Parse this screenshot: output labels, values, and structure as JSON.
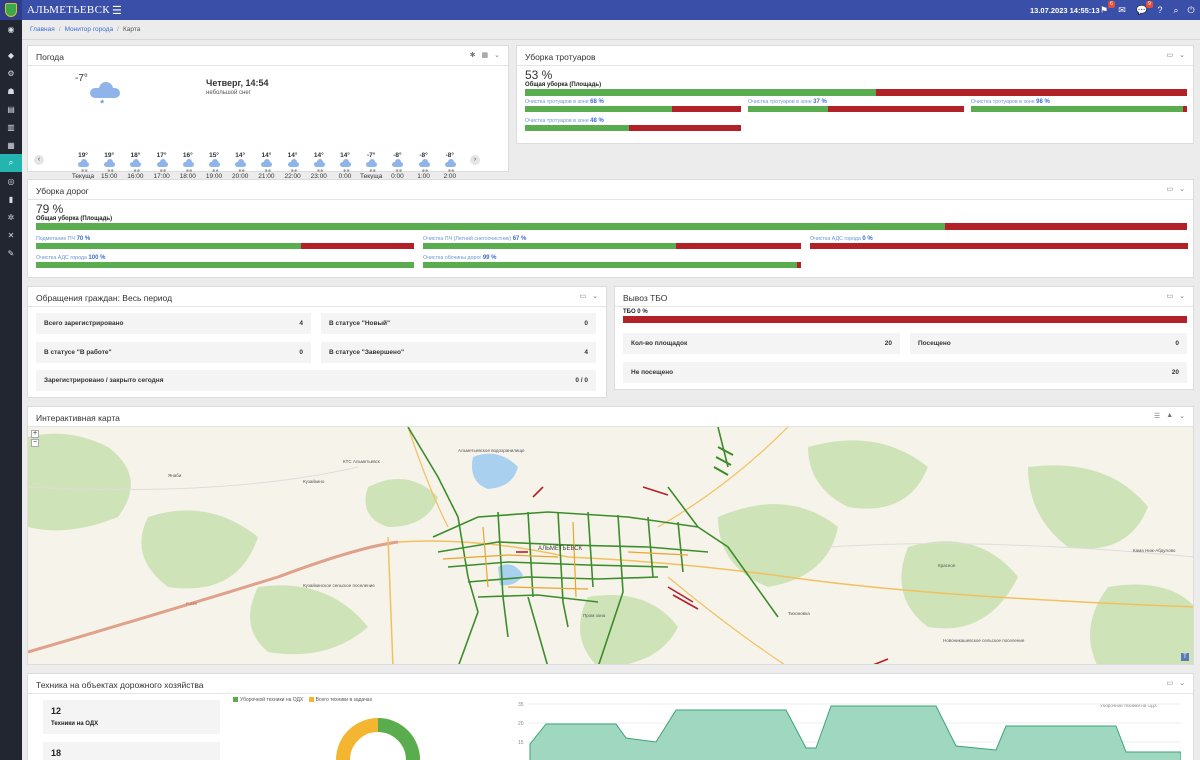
{
  "header": {
    "app_title": "АЛЬМЕТЬЕВСК",
    "datetime": "13.07.2023 14:55:13",
    "badges": {
      "notifications": "6",
      "chat": "9"
    },
    "icons": [
      "menu-icon",
      "flag-icon",
      "mail-icon",
      "chat-icon",
      "help-icon",
      "search-icon",
      "power-icon"
    ]
  },
  "breadcrumbs": [
    "Главная",
    "Монитор города",
    "Карта"
  ],
  "weather": {
    "title": "Погода",
    "current_temp": "-7°",
    "day": "Четверг, 14:54",
    "condition": "небольшой снег",
    "hours": [
      {
        "t": "19°",
        "h": "Текуща я"
      },
      {
        "t": "19°",
        "h": "15:00"
      },
      {
        "t": "18°",
        "h": "16:00"
      },
      {
        "t": "17°",
        "h": "17:00"
      },
      {
        "t": "16°",
        "h": "18:00"
      },
      {
        "t": "15°",
        "h": "19:00"
      },
      {
        "t": "14°",
        "h": "20:00"
      },
      {
        "t": "14°",
        "h": "21:00"
      },
      {
        "t": "14°",
        "h": "22:00"
      },
      {
        "t": "14°",
        "h": "23:00"
      },
      {
        "t": "14°",
        "h": "0:00"
      },
      {
        "t": "-7°",
        "h": "Текуща я"
      },
      {
        "t": "-8°",
        "h": "0:00"
      },
      {
        "t": "-8°",
        "h": "1:00"
      },
      {
        "t": "-8°",
        "h": "2:00"
      }
    ]
  },
  "sidewalks": {
    "title": "Уборка тротуаров",
    "total_pct": "53 %",
    "total_fraction": 0.53,
    "total_label": "Общая уборка (Площадь)",
    "items": [
      {
        "label": "Очистка тротуаров в зоне",
        "pct": "68 %",
        "fraction": 0.68
      },
      {
        "label": "Очистка тротуаров в зоне",
        "pct": "37 %",
        "fraction": 0.37
      },
      {
        "label": "Очистка тротуаров в зоне",
        "pct": "98 %",
        "fraction": 0.98
      },
      {
        "label": "Очистка тротуаров в зоне",
        "pct": "48 %",
        "fraction": 0.48
      }
    ]
  },
  "roads": {
    "title": "Уборка дорог",
    "total_pct": "79 %",
    "total_fraction": 0.79,
    "total_label": "Общая уборка (Площадь)",
    "items": [
      {
        "label": "Подметание ПЧ",
        "pct": "70 %",
        "fraction": 0.7
      },
      {
        "label": "Очистка ПЧ (Летний снегоочистник)",
        "pct": "67 %",
        "fraction": 0.67
      },
      {
        "label": "Очистка АДС города",
        "pct": "0 %",
        "fraction": 0.0
      },
      {
        "label": "Очистка АДС города",
        "pct": "100 %",
        "fraction": 1.0
      },
      {
        "label": "Очистка обочины дорог",
        "pct": "99 %",
        "fraction": 0.99
      }
    ]
  },
  "appeals": {
    "title": "Обращения граждан: Весь период",
    "stats": [
      {
        "label": "Всего зарегистрировано",
        "value": "4"
      },
      {
        "label": "В статусе \"Новый\"",
        "value": "0"
      },
      {
        "label": "В статусе \"В работе\"",
        "value": "0"
      },
      {
        "label": "В статусе \"Завершено\"",
        "value": "4"
      },
      {
        "label": "Зарегистрировано / закрыто сегодня",
        "value": "0 / 0"
      }
    ]
  },
  "waste": {
    "title": "Вывоз ТБО",
    "bar_label": "ТБО 0 %",
    "fraction": 0.0,
    "stats": [
      {
        "label": "Кол-во площадок",
        "value": "20"
      },
      {
        "label": "Посещено",
        "value": "0"
      },
      {
        "label": "Не посещено",
        "value": "20"
      }
    ]
  },
  "map": {
    "title": "Интерактивная карта",
    "labels": {
      "city": "АЛЬМЕТЬЕВСК",
      "reservoir": "Альметьевское водохранилище",
      "kuzaykino": "Кузайкино",
      "kuzaykino2": "Кузайкинское сельское поселение",
      "yanaby": "Янаби",
      "prom_zona": "Пром зона",
      "nov_nikashevo": "Новоникашевское сельское поселение",
      "ktc": "КТС Альметьевск",
      "krasnoe": "Красное",
      "skhoz": "Тихоновка",
      "road": "Р-239",
      "kama": "Кама Ниж-Абдулово"
    },
    "zoom_in": "+",
    "zoom_out": "−"
  },
  "machinery": {
    "title": "Техника на объектах дорожного хозяйства",
    "stats": [
      {
        "value": "12",
        "label": "Техники на ОДХ"
      },
      {
        "value": "18",
        "label": ""
      }
    ],
    "legend": [
      "Уборочной техники на ОДХ",
      "Всего техники в задачах"
    ],
    "colors": {
      "green": "#5aad4e",
      "yellow": "#f4b631",
      "red": "#b22028",
      "teal": "#9fd7c0"
    },
    "donut": {
      "green_fraction": 0.67
    },
    "series_legend": "Уборочной техники на ОДХ",
    "chart_y_ticks": [
      "35",
      "20",
      "15"
    ]
  }
}
